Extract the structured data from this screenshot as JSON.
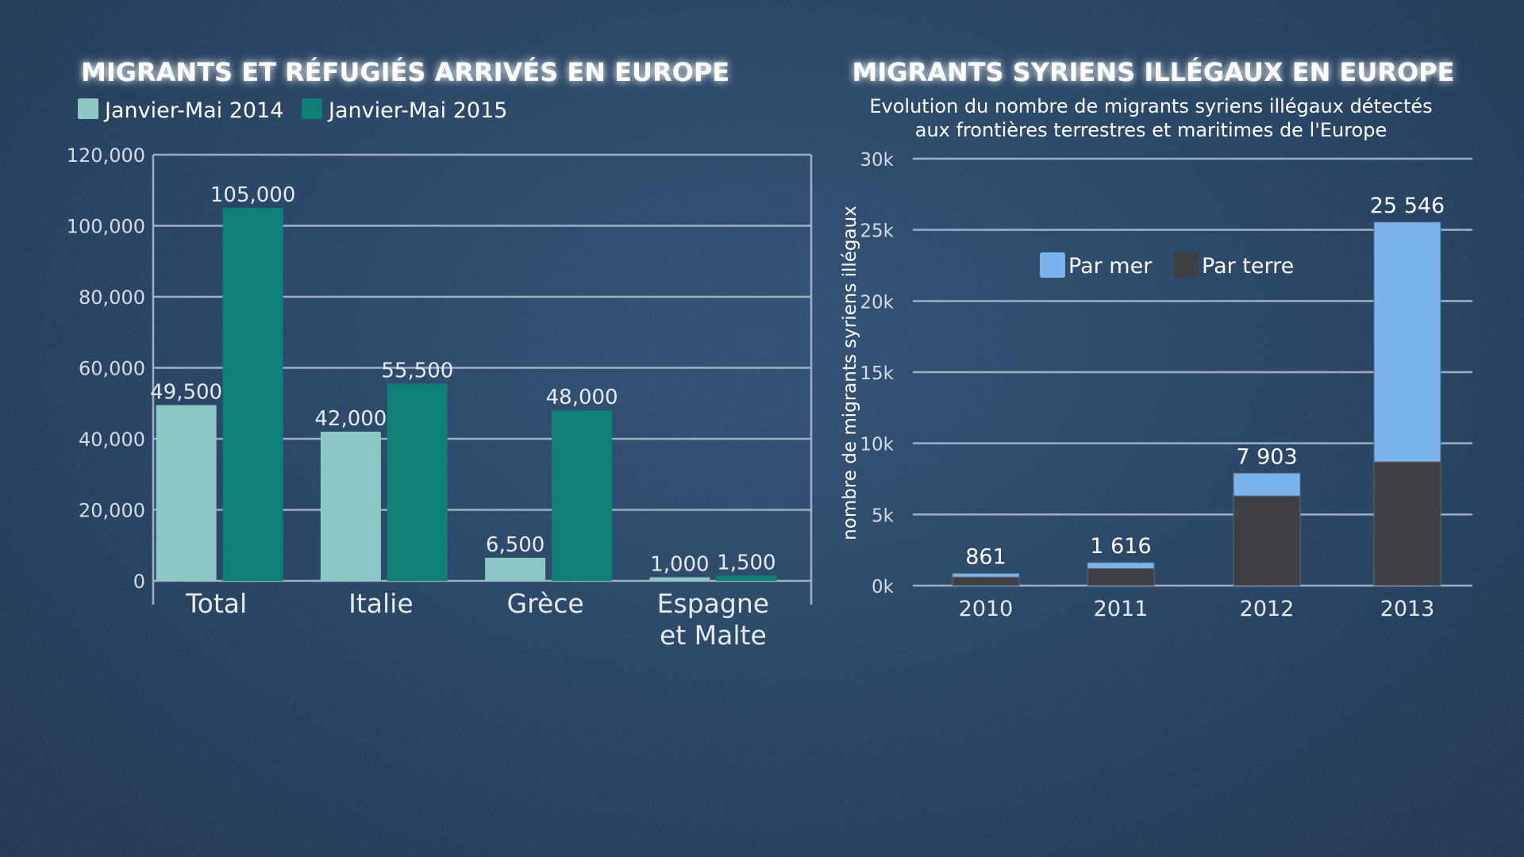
{
  "chart_data": [
    {
      "type": "bar",
      "title": "MIGRANTS ET RÉFUGIÉS ARRIVÉS EN EUROPE",
      "categories": [
        "Total",
        "Italie",
        "Grèce",
        "Espagne et Malte"
      ],
      "category_lines": [
        [
          "Total"
        ],
        [
          "Italie"
        ],
        [
          "Grèce"
        ],
        [
          "Espagne",
          "et Malte"
        ]
      ],
      "series": [
        {
          "name": "Janvier-Mai 2014",
          "color": "#8cc7c3",
          "values": [
            49500,
            42000,
            6500,
            1000
          ],
          "labels": [
            "49,500",
            "42,000",
            "6,500",
            "1,000"
          ]
        },
        {
          "name": "Janvier-Mai 2015",
          "color": "#0e8177",
          "values": [
            105000,
            55500,
            48000,
            1500
          ],
          "labels": [
            "105,000",
            "55,500",
            "48,000",
            "1,500"
          ]
        }
      ],
      "ylim": [
        0,
        120000
      ],
      "yticks": [
        0,
        20000,
        40000,
        60000,
        80000,
        100000,
        120000
      ],
      "ytick_labels": [
        "0",
        "20,000",
        "40,000",
        "60,000",
        "80,000",
        "100,000",
        "120,000"
      ],
      "grid": true,
      "legend": "top-left"
    },
    {
      "type": "bar",
      "stacked": true,
      "title": "MIGRANTS SYRIENS ILLÉGAUX EN EUROPE",
      "subtitle_lines": [
        "Evolution du nombre de migrants syriens illégaux détectés",
        "aux frontières terrestres et maritimes de l'Europe"
      ],
      "ylabel": "nombre de migrants syriens illégaux",
      "categories": [
        "2010",
        "2011",
        "2012",
        "2013"
      ],
      "series": [
        {
          "name": "Par terre",
          "color": "#3f4044",
          "values": [
            600,
            1200,
            6300,
            8700
          ]
        },
        {
          "name": "Par mer",
          "color": "#7bb4ec",
          "values": [
            261,
            416,
            1603,
            16846
          ]
        }
      ],
      "totals": [
        861,
        1616,
        7903,
        25546
      ],
      "total_labels": [
        "861",
        "1 616",
        "7 903",
        "25 546"
      ],
      "ylim": [
        0,
        30000
      ],
      "yticks": [
        0,
        5000,
        10000,
        15000,
        20000,
        25000,
        30000
      ],
      "ytick_labels": [
        "0k",
        "5k",
        "10k",
        "15k",
        "20k",
        "25k",
        "30k"
      ],
      "grid": true,
      "legend": "top-center",
      "legend_order": [
        "Par mer",
        "Par terre"
      ]
    }
  ]
}
